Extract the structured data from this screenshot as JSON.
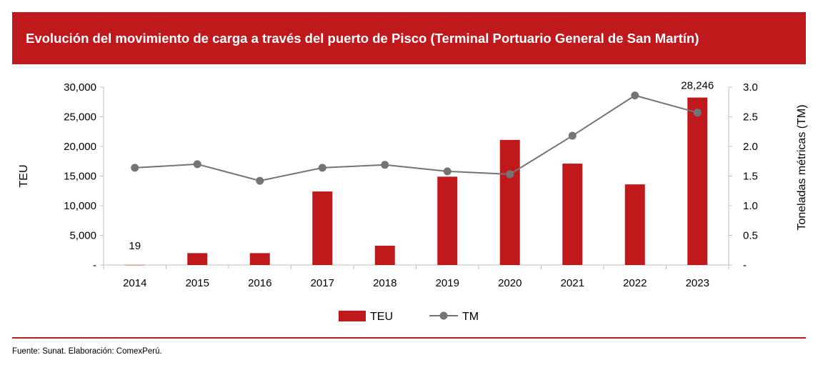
{
  "header": {
    "title": "Evolución del movimiento de carga a través del puerto de Pisco (Terminal Portuario General de San Martín)"
  },
  "footer": {
    "source": "Fuente: Sunat. Elaboración: ComexPerú."
  },
  "colors": {
    "brand": "#C0191D",
    "bar": "#C0191D",
    "line": "#747474"
  },
  "chart_data": {
    "type": "bar+line",
    "categories": [
      "2014",
      "2015",
      "2016",
      "2017",
      "2018",
      "2019",
      "2020",
      "2021",
      "2022",
      "2023"
    ],
    "series": [
      {
        "name": "TEU",
        "type": "bar",
        "axis": "left",
        "values": [
          19,
          2000,
          2000,
          12400,
          3250,
          14900,
          21100,
          17100,
          13600,
          28246
        ]
      },
      {
        "name": "TM",
        "type": "line",
        "axis": "right",
        "values": [
          1.64,
          1.7,
          1.42,
          1.64,
          1.69,
          1.58,
          1.53,
          2.18,
          2.86,
          2.57
        ]
      }
    ],
    "data_labels": [
      {
        "category": "2014",
        "text": "19"
      },
      {
        "category": "2023",
        "text": "28,246"
      }
    ],
    "ylabel": "TEU",
    "y2label": "Toneladas métricas (TM)",
    "ylim": [
      0,
      30000
    ],
    "y2lim": [
      0,
      3
    ],
    "yticks": [
      "-",
      "5,000",
      "10,000",
      "15,000",
      "20,000",
      "25,000",
      "30,000"
    ],
    "y2ticks": [
      "-",
      "0.5",
      "1.0",
      "1.5",
      "2.0",
      "2.5",
      "3.0"
    ],
    "legend": {
      "position": "bottom",
      "entries": [
        "TEU",
        "TM"
      ]
    },
    "grid": false
  }
}
